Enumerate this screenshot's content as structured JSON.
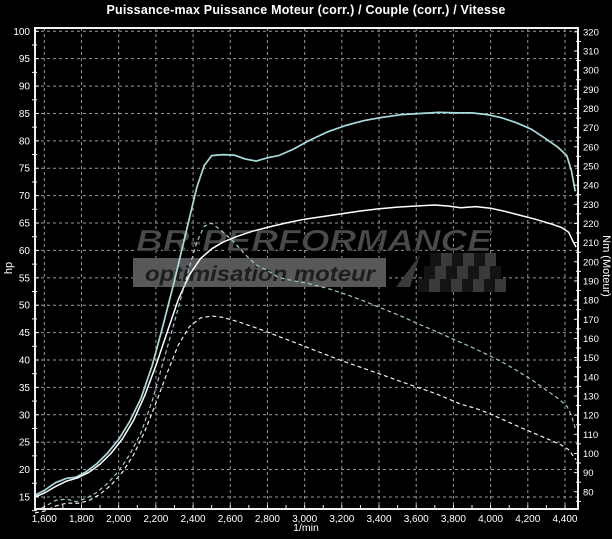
{
  "title": "Puissance-max Puissance Moteur (corr.) / Couple (corr.) / Vitesse",
  "watermark": {
    "brand": "BR-PERFORMANCE",
    "tagline": "optimisation moteur",
    "brand_color": "#4a4a4a",
    "tagline_color": "#1e1e1e",
    "bar_color": "#585858",
    "flag_dark": "#141414",
    "flag_light": "#3a3a3a"
  },
  "colors": {
    "background": "#000000",
    "plot_border": "#f2f2f2",
    "gridline": "#999999",
    "tick_label": "#ffffff",
    "power_run_a": "#a8dcdc",
    "power_run_b": "#ffffff",
    "torque_run_a": "#98cccc",
    "torque_run_b": "#f0f0f0"
  },
  "chart_data": {
    "type": "line",
    "title": "Puissance-max Puissance Moteur (corr.) / Couple (corr.) / Vitesse",
    "xlabel": "1/min",
    "ylabel_left": "hp",
    "ylabel_right": "Nm (Moteur)",
    "grid": true,
    "legend": "none",
    "xlim": [
      1550,
      4470
    ],
    "ylim_left": [
      12.8,
      100.6
    ],
    "ylim_right": [
      71,
      322
    ],
    "x_ticks": [
      1600,
      1800,
      2000,
      2200,
      2400,
      2600,
      2800,
      3000,
      3200,
      3400,
      3600,
      3800,
      4000,
      4200,
      4400
    ],
    "x_minor_step": 100,
    "y_ticks_left": [
      15,
      20,
      25,
      30,
      35,
      40,
      45,
      50,
      55,
      60,
      65,
      70,
      75,
      80,
      85,
      90,
      95,
      100
    ],
    "y_ticks_right": [
      80,
      90,
      100,
      110,
      120,
      130,
      140,
      150,
      160,
      170,
      180,
      190,
      200,
      210,
      220,
      230,
      240,
      250,
      260,
      270,
      280,
      290,
      300,
      310,
      320
    ],
    "series": [
      {
        "name": "puissance-moteur-corr-run-a",
        "axis": "left",
        "style": "solid",
        "color": "#a8dcdc",
        "width": 1.7,
        "peak": {
          "value": 85.2,
          "unit": "hp",
          "rpm": 3720
        },
        "points": [
          [
            1550,
            15.3
          ],
          [
            1600,
            16.2
          ],
          [
            1660,
            17.6
          ],
          [
            1720,
            18.4
          ],
          [
            1770,
            18.6
          ],
          [
            1820,
            19.5
          ],
          [
            1880,
            21.0
          ],
          [
            1940,
            23.0
          ],
          [
            2000,
            25.5
          ],
          [
            2060,
            28.8
          ],
          [
            2120,
            33.0
          ],
          [
            2180,
            39.0
          ],
          [
            2240,
            46.5
          ],
          [
            2300,
            54.5
          ],
          [
            2360,
            63.0
          ],
          [
            2420,
            71.5
          ],
          [
            2460,
            75.5
          ],
          [
            2500,
            77.3
          ],
          [
            2560,
            77.5
          ],
          [
            2620,
            77.4
          ],
          [
            2680,
            76.7
          ],
          [
            2740,
            76.3
          ],
          [
            2800,
            76.9
          ],
          [
            2860,
            77.3
          ],
          [
            2940,
            78.5
          ],
          [
            3020,
            80.0
          ],
          [
            3120,
            81.6
          ],
          [
            3220,
            82.8
          ],
          [
            3320,
            83.7
          ],
          [
            3420,
            84.3
          ],
          [
            3520,
            84.8
          ],
          [
            3620,
            85.0
          ],
          [
            3720,
            85.2
          ],
          [
            3820,
            85.1
          ],
          [
            3900,
            85.1
          ],
          [
            3980,
            84.8
          ],
          [
            4060,
            84.2
          ],
          [
            4140,
            83.3
          ],
          [
            4220,
            82.1
          ],
          [
            4300,
            80.3
          ],
          [
            4360,
            78.9
          ],
          [
            4410,
            77.3
          ],
          [
            4435,
            74.5
          ],
          [
            4455,
            70.8
          ]
        ]
      },
      {
        "name": "puissance-moteur-corr-run-b",
        "axis": "left",
        "style": "solid",
        "color": "#ffffff",
        "width": 1.5,
        "peak": {
          "value": 68.3,
          "unit": "hp",
          "rpm": 3700
        },
        "points": [
          [
            1550,
            15.0
          ],
          [
            1600,
            15.7
          ],
          [
            1660,
            16.9
          ],
          [
            1720,
            17.9
          ],
          [
            1780,
            18.5
          ],
          [
            1840,
            19.5
          ],
          [
            1900,
            21.0
          ],
          [
            1960,
            23.0
          ],
          [
            2020,
            25.6
          ],
          [
            2080,
            29.0
          ],
          [
            2140,
            33.5
          ],
          [
            2200,
            39.0
          ],
          [
            2260,
            45.0
          ],
          [
            2320,
            51.0
          ],
          [
            2380,
            55.5
          ],
          [
            2440,
            58.5
          ],
          [
            2500,
            60.3
          ],
          [
            2560,
            61.5
          ],
          [
            2640,
            62.6
          ],
          [
            2720,
            63.5
          ],
          [
            2800,
            64.2
          ],
          [
            2900,
            65.0
          ],
          [
            3000,
            65.7
          ],
          [
            3100,
            66.2
          ],
          [
            3200,
            66.7
          ],
          [
            3300,
            67.2
          ],
          [
            3400,
            67.6
          ],
          [
            3500,
            67.9
          ],
          [
            3600,
            68.1
          ],
          [
            3700,
            68.3
          ],
          [
            3770,
            68.1
          ],
          [
            3840,
            67.8
          ],
          [
            3920,
            68.0
          ],
          [
            4000,
            67.7
          ],
          [
            4080,
            67.1
          ],
          [
            4160,
            66.4
          ],
          [
            4240,
            65.7
          ],
          [
            4320,
            64.9
          ],
          [
            4380,
            64.2
          ],
          [
            4420,
            63.3
          ],
          [
            4445,
            61.5
          ],
          [
            4460,
            60.6
          ]
        ]
      },
      {
        "name": "couple-corr-run-a",
        "axis": "right",
        "style": "dashed",
        "color": "#98cccc",
        "width": 1.2,
        "peak": {
          "value": 220.2,
          "unit": "Nm",
          "rpm": 2500
        },
        "points": [
          [
            1550,
            70.3
          ],
          [
            1600,
            72.1
          ],
          [
            1660,
            75.5
          ],
          [
            1720,
            76.2
          ],
          [
            1770,
            74.8
          ],
          [
            1820,
            76.3
          ],
          [
            1880,
            79.5
          ],
          [
            1940,
            84.4
          ],
          [
            2000,
            90.8
          ],
          [
            2060,
            99.5
          ],
          [
            2120,
            110.8
          ],
          [
            2180,
            127.4
          ],
          [
            2240,
            147.8
          ],
          [
            2300,
            168.7
          ],
          [
            2360,
            190.1
          ],
          [
            2420,
            210.4
          ],
          [
            2460,
            218.5
          ],
          [
            2500,
            220.2
          ],
          [
            2560,
            215.6
          ],
          [
            2620,
            210.3
          ],
          [
            2680,
            203.8
          ],
          [
            2740,
            198.3
          ],
          [
            2800,
            195.5
          ],
          [
            2860,
            191.8
          ],
          [
            2940,
            190.1
          ],
          [
            3020,
            188.6
          ],
          [
            3120,
            186.2
          ],
          [
            3220,
            183.1
          ],
          [
            3320,
            179.5
          ],
          [
            3420,
            175.5
          ],
          [
            3520,
            171.6
          ],
          [
            3620,
            167.2
          ],
          [
            3720,
            163.1
          ],
          [
            3820,
            158.7
          ],
          [
            3900,
            155.4
          ],
          [
            3980,
            151.7
          ],
          [
            4060,
            147.8
          ],
          [
            4140,
            143.3
          ],
          [
            4220,
            138.5
          ],
          [
            4300,
            133.0
          ],
          [
            4360,
            128.9
          ],
          [
            4410,
            124.8
          ],
          [
            4435,
            119.6
          ],
          [
            4455,
            113.2
          ]
        ]
      },
      {
        "name": "couple-corr-run-b",
        "axis": "right",
        "style": "dashed",
        "color": "#f0f0f0",
        "width": 1.2,
        "peak": {
          "value": 171.7,
          "unit": "Nm",
          "rpm": 2500
        },
        "points": [
          [
            1550,
            68.9
          ],
          [
            1600,
            69.9
          ],
          [
            1660,
            72.5
          ],
          [
            1720,
            74.1
          ],
          [
            1780,
            74.0
          ],
          [
            1840,
            75.4
          ],
          [
            1900,
            78.7
          ],
          [
            1960,
            83.6
          ],
          [
            2020,
            90.2
          ],
          [
            2080,
            99.3
          ],
          [
            2140,
            111.4
          ],
          [
            2200,
            126.2
          ],
          [
            2260,
            141.8
          ],
          [
            2320,
            156.5
          ],
          [
            2380,
            166.1
          ],
          [
            2440,
            170.7
          ],
          [
            2500,
            171.7
          ],
          [
            2560,
            171.0
          ],
          [
            2640,
            168.8
          ],
          [
            2720,
            166.2
          ],
          [
            2800,
            163.3
          ],
          [
            2900,
            159.6
          ],
          [
            3000,
            155.9
          ],
          [
            3100,
            152.1
          ],
          [
            3200,
            148.4
          ],
          [
            3300,
            145.0
          ],
          [
            3400,
            141.6
          ],
          [
            3500,
            138.1
          ],
          [
            3600,
            134.7
          ],
          [
            3700,
            131.4
          ],
          [
            3770,
            128.6
          ],
          [
            3840,
            125.7
          ],
          [
            3920,
            123.5
          ],
          [
            4000,
            120.5
          ],
          [
            4080,
            117.1
          ],
          [
            4160,
            113.6
          ],
          [
            4240,
            110.3
          ],
          [
            4320,
            107.0
          ],
          [
            4380,
            104.4
          ],
          [
            4420,
            101.9
          ],
          [
            4445,
            98.5
          ],
          [
            4460,
            96.7
          ]
        ]
      }
    ]
  }
}
